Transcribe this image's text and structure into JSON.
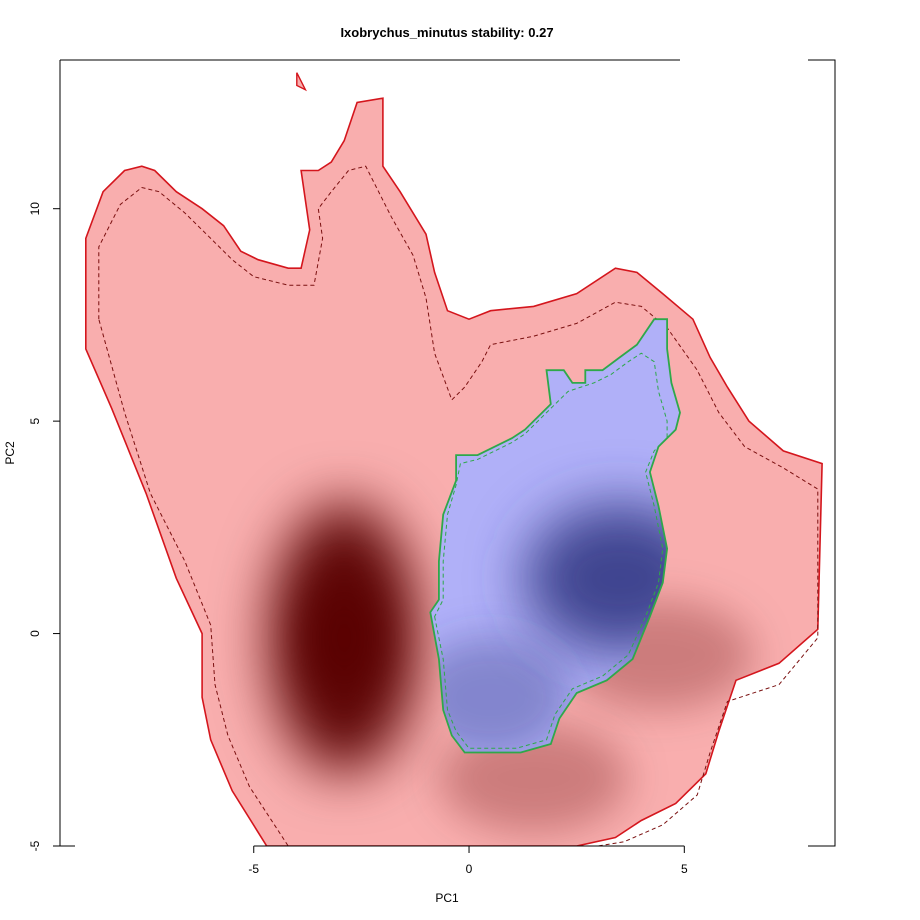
{
  "chart_data": {
    "type": "heatmap",
    "title": "Ixobrychus_minutus stability: 0.27",
    "xlabel": "PC1",
    "ylabel": "PC2",
    "xlim": [
      -9.5,
      8.5
    ],
    "ylim": [
      -5,
      13.5
    ],
    "x_ticks": [
      -5,
      0,
      5
    ],
    "y_ticks": [
      -5,
      0,
      5,
      10
    ],
    "grid": false,
    "colors": {
      "native_fill": "#f9aeae",
      "native_dark": "#5a0606",
      "native_outline": "#d4161d",
      "invaded_fill": "#b0b0f8",
      "invaded_dark": "#3a3e8a",
      "invaded_outline": "#2ea84a",
      "dashed_contour": "#7a1010"
    },
    "native_hotspots": [
      {
        "x": -2.9,
        "y": -0.1,
        "weight": 1.0
      },
      {
        "x": 4.4,
        "y": -0.5,
        "weight": 0.3
      },
      {
        "x": 1.5,
        "y": -3.4,
        "weight": 0.3
      }
    ],
    "invaded_hotspots": [
      {
        "x": 3.5,
        "y": 1.3,
        "weight": 1.0
      },
      {
        "x": 0.5,
        "y": -1.5,
        "weight": 0.4
      }
    ],
    "native_polygon": [
      [
        -8.9,
        6.7
      ],
      [
        -8.9,
        9.3
      ],
      [
        -8.5,
        10.4
      ],
      [
        -8.0,
        10.9
      ],
      [
        -7.6,
        11.0
      ],
      [
        -7.3,
        10.9
      ],
      [
        -6.8,
        10.4
      ],
      [
        -6.2,
        10.0
      ],
      [
        -5.7,
        9.6
      ],
      [
        -5.3,
        9.0
      ],
      [
        -4.9,
        8.8
      ],
      [
        -4.2,
        8.6
      ],
      [
        -3.9,
        8.6
      ],
      [
        -3.7,
        9.5
      ],
      [
        -3.8,
        10.2
      ],
      [
        -3.9,
        10.9
      ],
      [
        -3.5,
        10.9
      ],
      [
        -3.2,
        11.1
      ],
      [
        -2.9,
        11.6
      ],
      [
        -2.6,
        12.5
      ],
      [
        -2.0,
        12.6
      ],
      [
        -2.0,
        11.0
      ],
      [
        -1.6,
        10.4
      ],
      [
        -1.0,
        9.4
      ],
      [
        -0.8,
        8.5
      ],
      [
        -0.5,
        7.6
      ],
      [
        0.0,
        7.4
      ],
      [
        0.5,
        7.6
      ],
      [
        1.5,
        7.7
      ],
      [
        2.5,
        8.0
      ],
      [
        3.4,
        8.6
      ],
      [
        3.9,
        8.5
      ],
      [
        4.5,
        8.0
      ],
      [
        5.2,
        7.4
      ],
      [
        5.6,
        6.5
      ],
      [
        6.0,
        5.8
      ],
      [
        6.5,
        5.0
      ],
      [
        7.3,
        4.3
      ],
      [
        8.2,
        4.0
      ],
      [
        8.1,
        0.1
      ],
      [
        7.2,
        -0.7
      ],
      [
        6.2,
        -1.1
      ],
      [
        5.8,
        -2.3
      ],
      [
        5.5,
        -3.3
      ],
      [
        4.8,
        -4.0
      ],
      [
        4.0,
        -4.4
      ],
      [
        3.4,
        -4.8
      ],
      [
        2.5,
        -5.0
      ],
      [
        -4.7,
        -5.0
      ],
      [
        -5.5,
        -3.7
      ],
      [
        -6.0,
        -2.5
      ],
      [
        -6.2,
        -1.5
      ],
      [
        -6.2,
        0.0
      ],
      [
        -6.8,
        1.3
      ],
      [
        -7.5,
        3.3
      ],
      [
        -8.3,
        5.3
      ]
    ],
    "native_dashed_contour": [
      [
        -8.6,
        7.4
      ],
      [
        -8.6,
        9.1
      ],
      [
        -8.1,
        10.1
      ],
      [
        -7.6,
        10.5
      ],
      [
        -7.2,
        10.4
      ],
      [
        -6.6,
        9.9
      ],
      [
        -6.0,
        9.3
      ],
      [
        -5.5,
        8.8
      ],
      [
        -5.0,
        8.4
      ],
      [
        -4.2,
        8.2
      ],
      [
        -3.6,
        8.2
      ],
      [
        -3.4,
        9.3
      ],
      [
        -3.5,
        10.0
      ],
      [
        -3.2,
        10.4
      ],
      [
        -2.8,
        10.9
      ],
      [
        -2.4,
        11.0
      ],
      [
        -2.2,
        10.6
      ],
      [
        -1.8,
        9.8
      ],
      [
        -1.3,
        8.9
      ],
      [
        -1.0,
        7.9
      ],
      [
        -0.8,
        6.6
      ],
      [
        -0.4,
        5.5
      ],
      [
        -0.1,
        5.8
      ],
      [
        0.3,
        6.4
      ],
      [
        0.5,
        6.8
      ],
      [
        1.5,
        7.0
      ],
      [
        2.5,
        7.3
      ],
      [
        3.4,
        7.8
      ],
      [
        4.0,
        7.7
      ],
      [
        4.6,
        7.2
      ],
      [
        5.3,
        6.2
      ],
      [
        5.8,
        5.2
      ],
      [
        6.4,
        4.4
      ],
      [
        7.3,
        3.9
      ],
      [
        8.1,
        3.4
      ],
      [
        8.1,
        -0.1
      ],
      [
        7.2,
        -1.2
      ],
      [
        6.0,
        -1.6
      ],
      [
        5.6,
        -2.8
      ],
      [
        5.3,
        -3.8
      ],
      [
        4.5,
        -4.5
      ],
      [
        3.6,
        -4.9
      ],
      [
        3.0,
        -5.0
      ],
      [
        -4.2,
        -5.0
      ],
      [
        -5.1,
        -3.6
      ],
      [
        -5.6,
        -2.4
      ],
      [
        -5.9,
        -1.2
      ],
      [
        -6.0,
        0.2
      ],
      [
        -6.6,
        1.7
      ],
      [
        -7.4,
        3.3
      ],
      [
        -8.0,
        5.2
      ]
    ],
    "invaded_polygon": [
      [
        -0.9,
        0.5
      ],
      [
        -0.7,
        -0.6
      ],
      [
        -0.6,
        -1.8
      ],
      [
        -0.4,
        -2.4
      ],
      [
        -0.1,
        -2.8
      ],
      [
        1.2,
        -2.8
      ],
      [
        1.9,
        -2.6
      ],
      [
        2.1,
        -2.0
      ],
      [
        2.5,
        -1.4
      ],
      [
        3.2,
        -1.1
      ],
      [
        3.8,
        -0.6
      ],
      [
        4.2,
        0.4
      ],
      [
        4.5,
        1.2
      ],
      [
        4.6,
        2.0
      ],
      [
        4.4,
        3.0
      ],
      [
        4.2,
        3.8
      ],
      [
        4.4,
        4.4
      ],
      [
        4.8,
        4.8
      ],
      [
        4.9,
        5.2
      ],
      [
        4.7,
        5.9
      ],
      [
        4.6,
        6.7
      ],
      [
        4.6,
        7.4
      ],
      [
        4.3,
        7.4
      ],
      [
        3.9,
        6.8
      ],
      [
        3.5,
        6.5
      ],
      [
        3.1,
        6.2
      ],
      [
        2.7,
        6.2
      ],
      [
        2.7,
        5.9
      ],
      [
        2.4,
        5.9
      ],
      [
        2.2,
        6.2
      ],
      [
        1.8,
        6.2
      ],
      [
        1.9,
        5.4
      ],
      [
        1.6,
        5.1
      ],
      [
        1.3,
        4.8
      ],
      [
        1.0,
        4.6
      ],
      [
        0.6,
        4.4
      ],
      [
        0.2,
        4.2
      ],
      [
        -0.3,
        4.2
      ],
      [
        -0.3,
        3.6
      ],
      [
        -0.6,
        2.8
      ],
      [
        -0.7,
        1.7
      ],
      [
        -0.7,
        0.8
      ]
    ],
    "invaded_dashed_contour": [
      [
        -0.8,
        0.4
      ],
      [
        -0.6,
        -0.6
      ],
      [
        -0.5,
        -1.8
      ],
      [
        -0.3,
        -2.3
      ],
      [
        0.0,
        -2.7
      ],
      [
        1.1,
        -2.7
      ],
      [
        1.8,
        -2.5
      ],
      [
        2.0,
        -1.9
      ],
      [
        2.4,
        -1.3
      ],
      [
        3.1,
        -1.0
      ],
      [
        3.7,
        -0.5
      ],
      [
        4.1,
        0.4
      ],
      [
        4.4,
        1.2
      ],
      [
        4.5,
        2.0
      ],
      [
        4.3,
        3.0
      ],
      [
        4.1,
        3.8
      ],
      [
        4.3,
        4.3
      ],
      [
        4.6,
        4.6
      ],
      [
        4.6,
        5.0
      ],
      [
        4.4,
        5.7
      ],
      [
        4.3,
        6.4
      ],
      [
        4.0,
        6.6
      ],
      [
        3.7,
        6.4
      ],
      [
        3.3,
        6.1
      ],
      [
        2.9,
        5.9
      ],
      [
        2.6,
        5.8
      ],
      [
        2.3,
        5.7
      ],
      [
        1.9,
        5.3
      ],
      [
        1.6,
        5.0
      ],
      [
        1.3,
        4.7
      ],
      [
        1.0,
        4.5
      ],
      [
        0.6,
        4.3
      ],
      [
        0.2,
        4.1
      ],
      [
        -0.2,
        4.0
      ],
      [
        -0.3,
        3.5
      ],
      [
        -0.5,
        2.8
      ],
      [
        -0.6,
        1.7
      ],
      [
        -0.6,
        0.8
      ]
    ],
    "native_islet": [
      [
        -4.0,
        13.2
      ],
      [
        -3.9,
        13.0
      ],
      [
        -3.8,
        12.8
      ],
      [
        -4.0,
        12.9
      ]
    ]
  }
}
